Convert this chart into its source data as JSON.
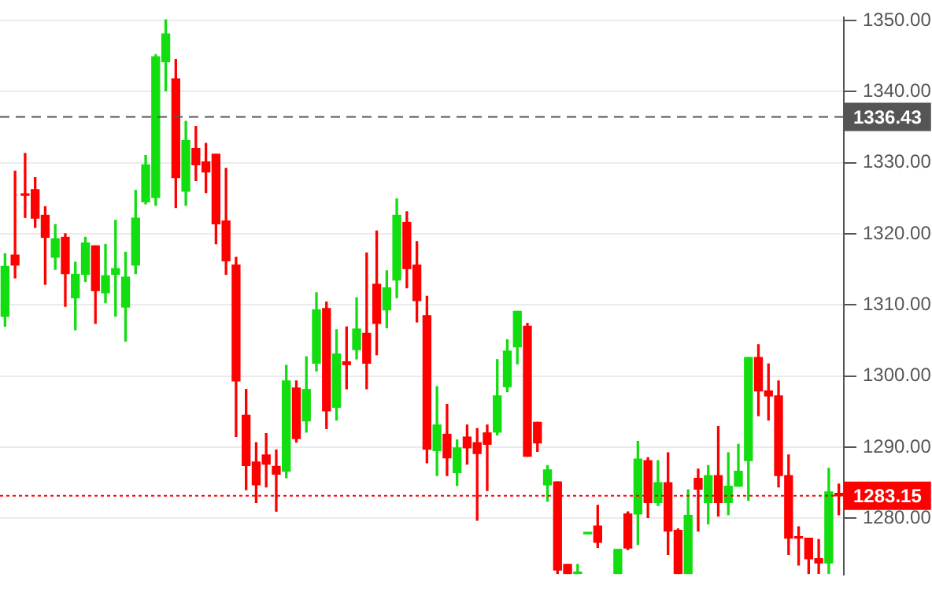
{
  "chart_data": {
    "type": "candlestick",
    "categories": [
      null,
      null,
      null,
      null,
      null,
      null,
      null,
      null,
      null,
      null,
      null,
      null,
      null,
      null,
      null,
      null,
      null,
      null,
      null,
      null,
      null,
      null,
      null,
      null,
      null,
      null,
      null,
      null,
      null,
      null,
      null,
      null,
      null,
      null,
      null,
      null,
      null,
      null,
      null,
      null,
      null,
      null,
      null,
      null,
      null,
      null,
      null,
      null,
      null,
      null,
      null,
      null,
      null,
      null,
      null,
      null,
      null,
      null,
      null,
      null,
      null,
      null,
      null,
      null,
      null,
      null,
      null,
      null,
      null,
      null,
      null,
      null,
      null,
      null,
      null,
      null,
      null,
      null,
      null,
      null,
      null,
      null,
      null,
      null
    ],
    "ohlc": [
      [
        1308.4,
        1317.2,
        1307.0,
        1315.4
      ],
      [
        1317.0,
        1328.8,
        1313.8,
        1315.6
      ],
      [
        1325.6,
        1331.3,
        1322.3,
        1325.4
      ],
      [
        1326.2,
        1327.9,
        1320.9,
        1322.2
      ],
      [
        1322.6,
        1323.8,
        1312.9,
        1319.5
      ],
      [
        1316.7,
        1321.3,
        1315.0,
        1319.3
      ],
      [
        1319.5,
        1320.0,
        1309.8,
        1314.4
      ],
      [
        1311.0,
        1316.0,
        1306.5,
        1314.3
      ],
      [
        1314.3,
        1319.5,
        1313.3,
        1318.7
      ],
      [
        1318.3,
        1318.3,
        1307.4,
        1312.0
      ],
      [
        1311.7,
        1318.5,
        1310.3,
        1314.1
      ],
      [
        1314.3,
        1321.9,
        1308.4,
        1315.1
      ],
      [
        1309.7,
        1317.4,
        1304.9,
        1313.9
      ],
      [
        1315.6,
        1326.1,
        1314.4,
        1322.2
      ],
      [
        1324.5,
        1331.0,
        1324.2,
        1329.7
      ],
      [
        1325.1,
        1345.2,
        1324.0,
        1344.9
      ],
      [
        1344.2,
        1350.1,
        1340.1,
        1348.1
      ],
      [
        1341.8,
        1344.5,
        1323.7,
        1327.9
      ],
      [
        1326.0,
        1335.8,
        1324.0,
        1333.1
      ],
      [
        1332.0,
        1335.1,
        1327.5,
        1329.7
      ],
      [
        1330.1,
        1332.7,
        1325.8,
        1328.7
      ],
      [
        1331.2,
        1331.2,
        1318.6,
        1321.4
      ],
      [
        1321.8,
        1329.2,
        1314.3,
        1316.2
      ],
      [
        1315.6,
        1316.7,
        1291.5,
        1299.3
      ],
      [
        1294.5,
        1298.1,
        1284.0,
        1287.4
      ],
      [
        1287.9,
        1290.6,
        1282.2,
        1284.7
      ],
      [
        1288.9,
        1291.9,
        1284.4,
        1287.6
      ],
      [
        1287.3,
        1289.6,
        1281.0,
        1286.2
      ],
      [
        1286.6,
        1301.5,
        1285.7,
        1299.3
      ],
      [
        1298.3,
        1299.3,
        1290.7,
        1291.2
      ],
      [
        1293.7,
        1302.7,
        1292.1,
        1298.1
      ],
      [
        1301.8,
        1311.7,
        1300.7,
        1309.3
      ],
      [
        1309.5,
        1310.4,
        1292.6,
        1295.1
      ],
      [
        1295.6,
        1306.5,
        1293.8,
        1303.1
      ],
      [
        1302.0,
        1306.9,
        1298.2,
        1301.6
      ],
      [
        1303.7,
        1311.0,
        1302.4,
        1306.6
      ],
      [
        1306.0,
        1317.3,
        1298.2,
        1301.8
      ],
      [
        1312.9,
        1320.4,
        1303.0,
        1307.4
      ],
      [
        1309.3,
        1314.8,
        1306.8,
        1312.4
      ],
      [
        1313.5,
        1324.9,
        1311.0,
        1322.6
      ],
      [
        1321.6,
        1323.1,
        1312.4,
        1315.1
      ],
      [
        1315.6,
        1318.9,
        1307.6,
        1310.6
      ],
      [
        1308.5,
        1311.2,
        1287.8,
        1289.7
      ],
      [
        1289.5,
        1298.5,
        1286.0,
        1293.1
      ],
      [
        1291.8,
        1296.0,
        1286.0,
        1288.5
      ],
      [
        1286.4,
        1291.0,
        1284.6,
        1289.9
      ],
      [
        1291.4,
        1293.1,
        1287.6,
        1289.9
      ],
      [
        1290.6,
        1292.6,
        1279.7,
        1289.1
      ],
      [
        1292.0,
        1293.1,
        1283.9,
        1290.4
      ],
      [
        1292.1,
        1302.3,
        1291.7,
        1297.2
      ],
      [
        1298.5,
        1305.1,
        1297.8,
        1303.5
      ],
      [
        1304.1,
        1309.1,
        1301.7,
        1309.1
      ],
      [
        1307.0,
        1307.4,
        1288.7,
        1288.7
      ],
      [
        1293.5,
        1293.5,
        1289.4,
        1290.6
      ],
      [
        1284.7,
        1287.4,
        1282.4,
        1286.8
      ],
      [
        1285.1,
        1285.1,
        1272.2,
        1272.7
      ],
      [
        1273.5,
        1273.5,
        1272.2,
        1272.2
      ],
      [
        1272.2,
        1273.5,
        1272.2,
        1272.4
      ],
      [
        1277.8,
        1277.8,
        1277.8,
        1277.8
      ],
      [
        1278.9,
        1281.8,
        1275.9,
        1276.6
      ],
      null,
      [
        1272.2,
        1275.6,
        1272.2,
        1275.6
      ],
      [
        1280.6,
        1280.9,
        1275.6,
        1275.8
      ],
      [
        1280.6,
        1290.8,
        1276.3,
        1288.3
      ],
      [
        1288.1,
        1288.5,
        1280.1,
        1282.2
      ],
      [
        1282.2,
        1288.1,
        1281.8,
        1285.0
      ],
      [
        1285.0,
        1289.2,
        1274.9,
        1278.2
      ],
      [
        1278.3,
        1278.5,
        1272.2,
        1272.2
      ],
      [
        1272.2,
        1284.0,
        1272.2,
        1280.4
      ],
      [
        1285.6,
        1286.9,
        1278.2,
        1284.1
      ],
      [
        1282.2,
        1287.4,
        1279.2,
        1286.0
      ],
      [
        1286.0,
        1292.9,
        1280.3,
        1282.2
      ],
      [
        1282.2,
        1289.2,
        1280.5,
        1284.5
      ],
      [
        1284.5,
        1290.4,
        1284.5,
        1286.6
      ],
      [
        1288.1,
        1302.6,
        1282.5,
        1302.6
      ],
      [
        1302.6,
        1304.4,
        1294.4,
        1297.9
      ],
      [
        1297.9,
        1301.7,
        1293.8,
        1297.2
      ],
      [
        1297.2,
        1299.3,
        1284.4,
        1286.0
      ],
      [
        1286.0,
        1288.9,
        1274.9,
        1277.2
      ],
      [
        1277.4,
        1278.8,
        1273.4,
        1277.2
      ],
      [
        1277.2,
        1277.2,
        1272.2,
        1274.3
      ],
      [
        1274.3,
        1277.0,
        1272.2,
        1273.7
      ],
      [
        1273.7,
        1287.0,
        1272.2,
        1283.7
      ],
      [
        1283.5,
        1284.8,
        1280.5,
        1283.15
      ]
    ],
    "colors": [
      "#11dd11",
      "#ff0000",
      "#ff0000",
      "#ff0000",
      "#ff0000",
      "#11dd11",
      "#ff0000",
      "#11dd11",
      "#11dd11",
      "#ff0000",
      "#11dd11",
      "#11dd11",
      "#11dd11",
      "#11dd11",
      "#11dd11",
      "#11dd11",
      "#11dd11",
      "#ff0000",
      "#11dd11",
      "#ff0000",
      "#ff0000",
      "#ff0000",
      "#ff0000",
      "#ff0000",
      "#ff0000",
      "#ff0000",
      "#ff0000",
      "#ff0000",
      "#11dd11",
      "#ff0000",
      "#11dd11",
      "#11dd11",
      "#ff0000",
      "#11dd11",
      "#ff0000",
      "#11dd11",
      "#ff0000",
      "#ff0000",
      "#11dd11",
      "#11dd11",
      "#ff0000",
      "#ff0000",
      "#ff0000",
      "#11dd11",
      "#ff0000",
      "#11dd11",
      "#ff0000",
      "#ff0000",
      "#ff0000",
      "#11dd11",
      "#11dd11",
      "#11dd11",
      "#ff0000",
      "#ff0000",
      "#11dd11",
      "#ff0000",
      "#ff0000",
      "#11dd11",
      "#11dd11",
      "#ff0000",
      null,
      "#11dd11",
      "#ff0000",
      "#11dd11",
      "#ff0000",
      "#11dd11",
      "#ff0000",
      "#ff0000",
      "#11dd11",
      "#ff0000",
      "#11dd11",
      "#ff0000",
      "#11dd11",
      "#11dd11",
      "#11dd11",
      "#ff0000",
      "#ff0000",
      "#ff0000",
      "#ff0000",
      "#ff0000",
      "#ff0000",
      "#ff0000",
      "#11dd11",
      "#ff0000"
    ],
    "ylim": [
      1272.1,
      1350.4
    ],
    "yticks": [
      {
        "value": 1280,
        "label": "1280.00"
      },
      {
        "value": 1290,
        "label": "1290.00"
      },
      {
        "value": 1300,
        "label": "1300.00"
      },
      {
        "value": 1310,
        "label": "1310.00"
      },
      {
        "value": 1320,
        "label": "1320.00"
      },
      {
        "value": 1330,
        "label": "1330.00"
      },
      {
        "value": 1340,
        "label": "1340.00"
      },
      {
        "value": 1350,
        "label": "1350.00"
      }
    ],
    "ref_lines": [
      {
        "axis": "y",
        "value": 1336.43,
        "label": "1336.43",
        "color": "#555555",
        "line_style": "dashed"
      },
      {
        "axis": "y",
        "value": 1283.15,
        "label": "1283.15",
        "color": "#ff0000",
        "line_style": "dotted"
      }
    ],
    "grid": "y",
    "tick_labels": "y",
    "legend": false
  }
}
